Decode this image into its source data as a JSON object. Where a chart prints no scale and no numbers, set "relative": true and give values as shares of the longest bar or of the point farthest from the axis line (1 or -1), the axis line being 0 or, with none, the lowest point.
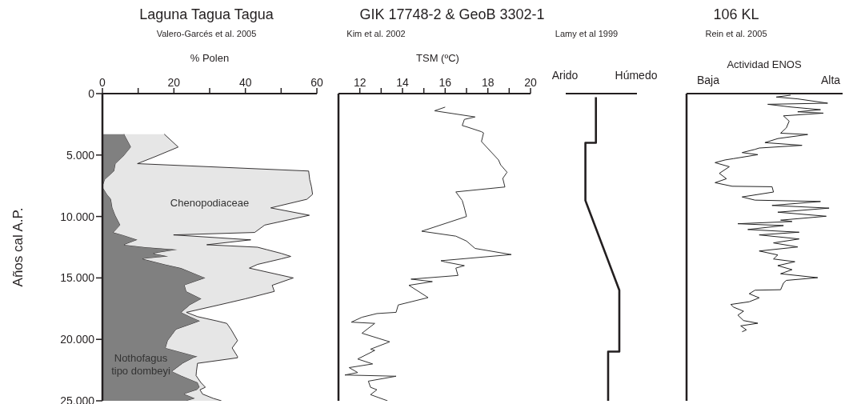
{
  "chart_data": [
    {
      "type": "area",
      "title": "Laguna Tagua Tagua",
      "subtitle": "Valero-Garcés et al. 2005",
      "xlabel": "% Polen",
      "ylabel": "Años cal A.P.",
      "orientation": "horizontal",
      "stacked": true,
      "x": [
        3300,
        4350,
        5100,
        5700,
        6300,
        7000,
        7600,
        8200,
        8600,
        9300,
        9900,
        10700,
        11300,
        11500,
        11900,
        12300,
        12500,
        12700,
        13000,
        13250,
        13450,
        13900,
        14200,
        15000,
        15600,
        16100,
        16700,
        17200,
        17800,
        18150,
        18500,
        18700,
        19200,
        20100,
        20700,
        21400,
        21500,
        21950,
        22600,
        22950,
        23500,
        23900,
        24100,
        24450,
        24800,
        25000
      ],
      "series": [
        {
          "name": "Nothofagus tipo dombeyi",
          "color": "#808080",
          "values": [
            6.1,
            8.0,
            5.9,
            3.7,
            3.3,
            0.7,
            0,
            1.3,
            2.4,
            2.8,
            3.6,
            5.0,
            3.1,
            5.7,
            9.8,
            6.1,
            12,
            21.0,
            14.3,
            18.4,
            11.3,
            17.5,
            22,
            28.8,
            23,
            23.5,
            27.7,
            24.5,
            22.1,
            24.5,
            27.3,
            25.5,
            20.6,
            18.3,
            17.7,
            26.6,
            25.5,
            22.5,
            19.5,
            22,
            26.6,
            27.2,
            26.5,
            22.9,
            25.9,
            23.6
          ]
        },
        {
          "name": "Chenopodiaceae",
          "color": "#e6e6e6",
          "values": [
            11.2,
            13.2,
            9.1,
            6.1,
            54.4,
            57.3,
            58.5,
            57.5,
            54.8,
            44.3,
            54.3,
            40.4,
            39.5,
            14.2,
            31.7,
            23.1,
            31.4,
            25,
            35.7,
            34.3,
            38.7,
            25.9,
            19.1,
            24.6,
            24.5,
            24.6,
            12.3,
            8.1,
            1.4,
            2.1,
            4.7,
            9.3,
            15.4,
            19.5,
            18.6,
            11.2,
            12.3,
            4.1,
            6.8,
            4.2,
            0.9,
            1.6,
            0.8,
            5.1,
            5.1,
            9.7
          ]
        }
      ],
      "xlim": [
        0,
        60
      ],
      "xticks": [
        0,
        {
          "value": 10,
          "label": null
        },
        20,
        {
          "value": 30,
          "label": null
        },
        40,
        {
          "value": 50,
          "label": null
        },
        60
      ],
      "ylim": [
        25000,
        0
      ],
      "yticks": [
        0,
        {
          "value": 5000,
          "label": "5.000"
        },
        {
          "value": 10000,
          "label": "10.000"
        },
        {
          "value": 15000,
          "label": "15.000"
        },
        {
          "value": 20000,
          "label": "20.000"
        },
        {
          "value": 25000,
          "label": "25.000"
        }
      ]
    },
    {
      "type": "line",
      "title": "GIK 17748-2 & GeoB 3302-1",
      "subtitle": "Kim et al. 2002",
      "xlabel": "TSM (ºC)",
      "orientation": "horizontal",
      "tick_labels": "x",
      "x": [
        1100,
        1400,
        1900,
        2100,
        2600,
        2700,
        3100,
        3200,
        3900,
        5400,
        5800,
        6400,
        6900,
        7600,
        8000,
        8700,
        9300,
        10000,
        11200,
        11600,
        12000,
        12600,
        13100,
        13600,
        13700,
        14000,
        14200,
        14800,
        15100,
        15300,
        15600,
        16600,
        17200,
        17800,
        17900,
        18200,
        18600,
        18700,
        19500,
        20200,
        20800,
        20900,
        21600,
        22000,
        22300,
        22700,
        22900,
        23000,
        23400,
        23900,
        24100,
        24500,
        25000
      ],
      "series": [
        {
          "color": "#333333",
          "values": [
            16.0,
            15.5,
            17.4,
            16.9,
            16.8,
            17.0,
            17.7,
            17.8,
            17.7,
            18.5,
            18.6,
            18.9,
            18.7,
            18.8,
            16.5,
            16.8,
            16.9,
            17.0,
            14.9,
            16.5,
            17.0,
            17.4,
            19.1,
            15.8,
            16.0,
            16.9,
            16.5,
            16.6,
            14.4,
            15.4,
            14.3,
            15.2,
            13.8,
            13.7,
            12.8,
            12.1,
            11.6,
            12.7,
            12.1,
            13.4,
            12.5,
            12.7,
            11.9,
            12.6,
            11.5,
            11.9,
            11.3,
            13.7,
            12.4,
            12.5,
            12.8,
            12.5,
            13.3
          ]
        }
      ],
      "xlim": [
        11,
        20
      ],
      "xticks": [
        12,
        {
          "value": 13,
          "label": null
        },
        14,
        {
          "value": 15,
          "label": null
        },
        16,
        {
          "value": 17,
          "label": null
        },
        18,
        {
          "value": 19,
          "label": null
        },
        20
      ],
      "ylim": [
        25000,
        0
      ]
    },
    {
      "type": "line",
      "subtitle": "Lamy et al 1999",
      "annotations": [
        "Arido",
        "Húmedo"
      ],
      "orientation": "horizontal",
      "relative": true,
      "tick_labels": false,
      "x": [
        300,
        4000,
        4000,
        8700,
        16000,
        21000,
        21000,
        25000
      ],
      "series": [
        {
          "color": "#231f20",
          "values": [
            0.31,
            0.31,
            0,
            0,
            1,
            1,
            0.67,
            0.67
          ]
        }
      ],
      "ylim": [
        25000,
        0
      ]
    },
    {
      "type": "line",
      "title": "106 KL",
      "subtitle": "Rein et al. 2005",
      "xlabel": "Actividad ENOS",
      "annotations": [
        "Baja",
        "Alta"
      ],
      "orientation": "horizontal",
      "relative": true,
      "tick_labels": false,
      "x": [
        130,
        280,
        430,
        780,
        870,
        1090,
        1310,
        1480,
        1590,
        1810,
        2240,
        2790,
        3220,
        3330,
        3660,
        3990,
        4210,
        4430,
        4540,
        4800,
        4970,
        5290,
        5400,
        5620,
        5950,
        6490,
        6930,
        7250,
        7540,
        7580,
        8010,
        8410,
        8670,
        8780,
        9100,
        9320,
        9650,
        9980,
        10300,
        10410,
        10590,
        10740,
        11060,
        11280,
        11500,
        11830,
        12150,
        12480,
        12810,
        13130,
        13460,
        13680,
        14000,
        14330,
        14660,
        14980,
        15200,
        15420,
        15960,
        16000,
        16290,
        16620,
        16940,
        17160,
        17380,
        17710,
        18030,
        18470,
        18690,
        18900,
        19230,
        19380
      ],
      "series": [
        {
          "color": "#222222",
          "values": [
            0.73,
            0.63,
            0.78,
            0.99,
            0.57,
            0.73,
            0.94,
            0.78,
            0.96,
            0.68,
            0.72,
            0.7,
            0.66,
            0.85,
            0.64,
            0.55,
            0.81,
            0.51,
            0.48,
            0.39,
            0.5,
            0.33,
            0.27,
            0.2,
            0.3,
            0.23,
            0.28,
            0.2,
            0.32,
            0.6,
            0.61,
            0.39,
            0.48,
            0.94,
            0.6,
            1.0,
            0.64,
            0.98,
            0.66,
            0.74,
            0.36,
            0.68,
            0.43,
            0.79,
            0.51,
            0.79,
            0.61,
            0.78,
            0.51,
            0.64,
            0.61,
            0.76,
            0.64,
            0.74,
            0.66,
            0.92,
            0.7,
            0.68,
            0.66,
            0.48,
            0.44,
            0.51,
            0.44,
            0.31,
            0.33,
            0.4,
            0.36,
            0.4,
            0.5,
            0.38,
            0.42,
            0.39
          ]
        }
      ],
      "ylim": [
        25000,
        0
      ]
    }
  ]
}
